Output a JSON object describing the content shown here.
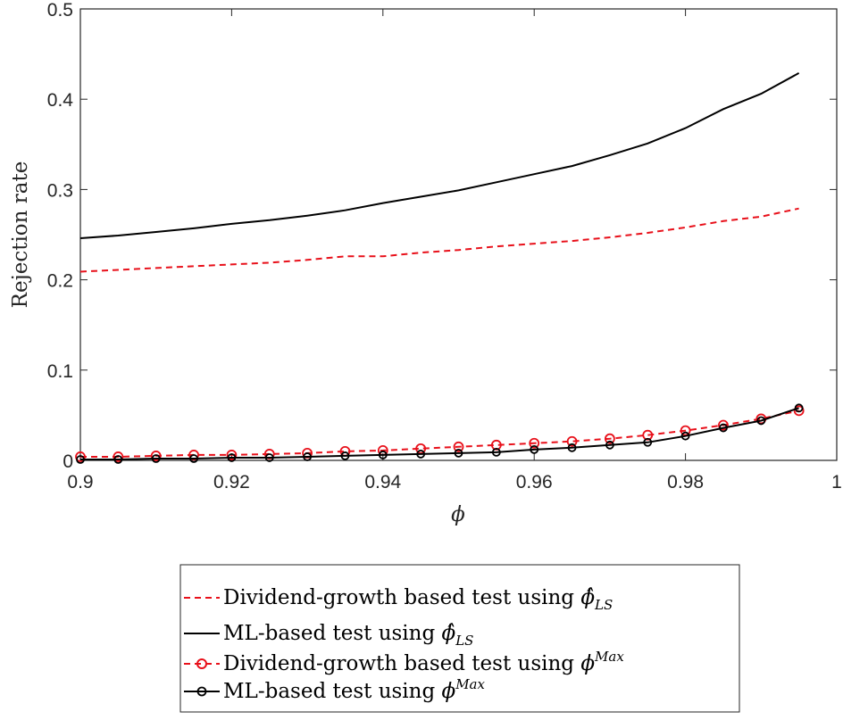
{
  "chart_data": {
    "type": "line",
    "title": "",
    "xlabel": "ϕ",
    "ylabel": "Rejection rate",
    "xlim": [
      0.9,
      1.0
    ],
    "ylim": [
      0,
      0.5
    ],
    "xticks": [
      "0.9",
      "0.92",
      "0.94",
      "0.96",
      "0.98",
      "1"
    ],
    "yticks": [
      "0",
      "0.1",
      "0.2",
      "0.3",
      "0.4",
      "0.5"
    ],
    "x": [
      0.9,
      0.905,
      0.91,
      0.915,
      0.92,
      0.925,
      0.93,
      0.935,
      0.94,
      0.945,
      0.95,
      0.955,
      0.96,
      0.965,
      0.97,
      0.975,
      0.98,
      0.985,
      0.99,
      0.995
    ],
    "series": [
      {
        "name": "Dividend-growth based test using ϕ̂_LS",
        "color": "#e8101a",
        "style": "dashed",
        "marker": "none",
        "values": [
          0.209,
          0.211,
          0.213,
          0.215,
          0.217,
          0.219,
          0.222,
          0.226,
          0.226,
          0.23,
          0.233,
          0.237,
          0.24,
          0.243,
          0.247,
          0.252,
          0.258,
          0.265,
          0.27,
          0.279
        ]
      },
      {
        "name": "ML-based test using ϕ̂_LS",
        "color": "#000000",
        "style": "solid",
        "marker": "none",
        "values": [
          0.246,
          0.249,
          0.253,
          0.257,
          0.262,
          0.266,
          0.271,
          0.277,
          0.285,
          0.292,
          0.299,
          0.308,
          0.317,
          0.326,
          0.338,
          0.351,
          0.368,
          0.389,
          0.406,
          0.429
        ]
      },
      {
        "name": "Dividend-growth based test using ϕ^Max",
        "color": "#e8101a",
        "style": "dashed",
        "marker": "circle",
        "values": [
          0.004,
          0.004,
          0.005,
          0.006,
          0.006,
          0.007,
          0.008,
          0.01,
          0.011,
          0.013,
          0.015,
          0.017,
          0.019,
          0.021,
          0.024,
          0.028,
          0.033,
          0.039,
          0.046,
          0.055
        ]
      },
      {
        "name": "ML-based test using ϕ^Max",
        "color": "#000000",
        "style": "solid",
        "marker": "circle",
        "values": [
          0.001,
          0.001,
          0.002,
          0.002,
          0.003,
          0.003,
          0.004,
          0.005,
          0.006,
          0.007,
          0.008,
          0.009,
          0.012,
          0.014,
          0.017,
          0.02,
          0.027,
          0.036,
          0.044,
          0.058
        ]
      }
    ],
    "grid": false,
    "legend_position": "bottom"
  }
}
